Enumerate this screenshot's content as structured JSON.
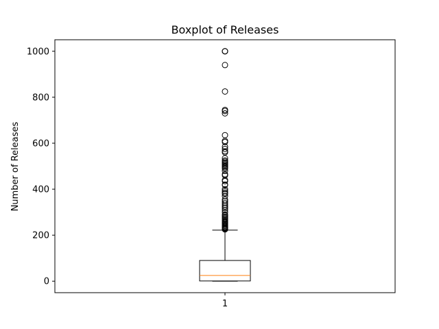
{
  "chart_data": {
    "type": "boxplot",
    "title": "Boxplot of Releases",
    "xlabel": "",
    "ylabel": "Number of Releases",
    "categories": [
      "1"
    ],
    "ylim": [
      -50,
      1050
    ],
    "yticks": [
      0,
      200,
      400,
      600,
      800,
      1000
    ],
    "grid": false,
    "legend": "none",
    "box": {
      "whisker_low": 0,
      "q1": 1,
      "median": 25,
      "q3": 90,
      "whisker_high": 222
    },
    "outliers": [
      225,
      228,
      230,
      233,
      236,
      240,
      244,
      248,
      252,
      256,
      260,
      265,
      270,
      275,
      280,
      285,
      290,
      300,
      310,
      318,
      325,
      332,
      340,
      348,
      355,
      370,
      380,
      385,
      392,
      400,
      418,
      420,
      435,
      440,
      460,
      465,
      480,
      490,
      495,
      500,
      505,
      510,
      515,
      520,
      525,
      535,
      560,
      565,
      575,
      585,
      605,
      610,
      635,
      730,
      740,
      745,
      825,
      940,
      1000,
      1000,
      1000
    ],
    "colors": {
      "box": "#000000",
      "median": "#ff7f0e",
      "outlier": "#000000"
    }
  }
}
